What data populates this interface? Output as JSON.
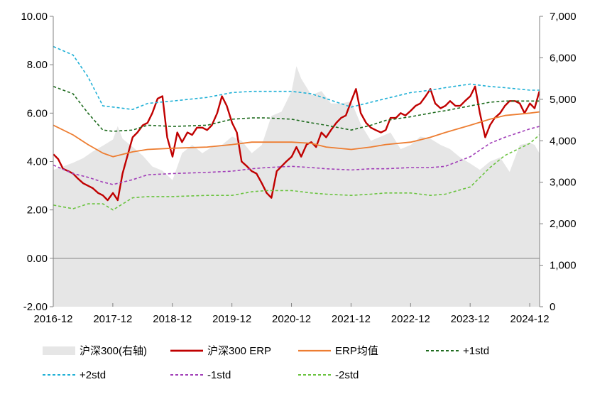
{
  "chart_data": {
    "type": "line",
    "title": "",
    "xlabel": "",
    "ylabel": "",
    "left_axis": {
      "ylim": [
        -2,
        10
      ],
      "ticks": [
        "-2.00",
        "0.00",
        "2.00",
        "4.00",
        "6.00",
        "8.00",
        "10.00"
      ]
    },
    "right_axis": {
      "ylim": [
        0,
        7000
      ],
      "ticks": [
        "0",
        "1,000",
        "2,000",
        "3,000",
        "4,000",
        "5,000",
        "6,000",
        "7,000"
      ]
    },
    "x_axis": {
      "range": [
        2016.917,
        2025.083
      ],
      "ticks": [
        "2016-12",
        "2017-12",
        "2018-12",
        "2019-12",
        "2020-12",
        "2021-12",
        "2022-12",
        "2023-12",
        "2024-12"
      ],
      "tick_positions": [
        2016.917,
        2017.917,
        2018.917,
        2019.917,
        2020.917,
        2021.917,
        2022.917,
        2023.917,
        2024.917
      ]
    },
    "grid": false,
    "legend_position": "bottom",
    "colors": {
      "index_area": "#e6e6e6",
      "erp": "#c00000",
      "mean": "#ed7d31",
      "plus1": "#1e6b1e",
      "plus2": "#1fb0d6",
      "minus1": "#a13eb8",
      "minus2": "#6ac33f"
    },
    "series": [
      {
        "name": "沪深300(右轴)",
        "kind": "area",
        "axis": "right",
        "x": [
          2016.92,
          2017.08,
          2017.25,
          2017.42,
          2017.58,
          2017.75,
          2017.92,
          2018.0,
          2018.08,
          2018.25,
          2018.42,
          2018.58,
          2018.75,
          2018.92,
          2019.08,
          2019.25,
          2019.42,
          2019.58,
          2019.75,
          2019.92,
          2020.08,
          2020.25,
          2020.42,
          2020.58,
          2020.75,
          2020.92,
          2021.0,
          2021.08,
          2021.25,
          2021.42,
          2021.58,
          2021.75,
          2021.92,
          2022.08,
          2022.25,
          2022.42,
          2022.58,
          2022.75,
          2022.92,
          2023.08,
          2023.25,
          2023.42,
          2023.58,
          2023.75,
          2023.92,
          2024.08,
          2024.25,
          2024.42,
          2024.58,
          2024.75,
          2024.92,
          2025.0,
          2025.08
        ],
        "values": [
          3300,
          3380,
          3470,
          3580,
          3740,
          3880,
          4030,
          4350,
          4050,
          3850,
          3640,
          3380,
          3280,
          3050,
          3700,
          3900,
          3700,
          3850,
          3900,
          4100,
          4000,
          3700,
          3900,
          4600,
          4700,
          5200,
          5800,
          5500,
          5100,
          5200,
          4900,
          4900,
          4950,
          4400,
          4000,
          4100,
          4200,
          3800,
          3900,
          4100,
          4050,
          3900,
          3800,
          3600,
          3450,
          3300,
          3500,
          3600,
          3250,
          3900,
          3950,
          3900,
          3700
        ]
      },
      {
        "name": "沪深300 ERP",
        "kind": "line",
        "axis": "left",
        "x": [
          2016.92,
          2017.0,
          2017.08,
          2017.17,
          2017.25,
          2017.33,
          2017.42,
          2017.5,
          2017.58,
          2017.67,
          2017.75,
          2017.83,
          2017.92,
          2018.0,
          2018.08,
          2018.17,
          2018.25,
          2018.33,
          2018.42,
          2018.5,
          2018.58,
          2018.67,
          2018.75,
          2018.83,
          2018.92,
          2019.0,
          2019.08,
          2019.17,
          2019.25,
          2019.33,
          2019.42,
          2019.5,
          2019.58,
          2019.67,
          2019.75,
          2019.83,
          2019.92,
          2020.0,
          2020.08,
          2020.17,
          2020.25,
          2020.33,
          2020.42,
          2020.5,
          2020.58,
          2020.67,
          2020.75,
          2020.83,
          2020.92,
          2021.0,
          2021.08,
          2021.17,
          2021.25,
          2021.33,
          2021.42,
          2021.5,
          2021.58,
          2021.67,
          2021.75,
          2021.83,
          2021.92,
          2022.0,
          2022.08,
          2022.17,
          2022.25,
          2022.33,
          2022.42,
          2022.5,
          2022.58,
          2022.67,
          2022.75,
          2022.83,
          2022.92,
          2023.0,
          2023.08,
          2023.17,
          2023.25,
          2023.33,
          2023.42,
          2023.5,
          2023.58,
          2023.67,
          2023.75,
          2023.83,
          2023.92,
          2024.0,
          2024.08,
          2024.17,
          2024.25,
          2024.33,
          2024.42,
          2024.5,
          2024.58,
          2024.67,
          2024.75,
          2024.83,
          2024.92,
          2025.0,
          2025.08
        ],
        "values": [
          4.3,
          4.1,
          3.7,
          3.6,
          3.5,
          3.3,
          3.1,
          3.0,
          2.9,
          2.7,
          2.6,
          2.4,
          2.7,
          2.4,
          3.5,
          4.3,
          5.0,
          5.2,
          5.5,
          5.6,
          6.0,
          6.6,
          6.7,
          5.0,
          4.2,
          5.2,
          4.8,
          5.2,
          5.1,
          5.4,
          5.4,
          5.3,
          5.5,
          6.0,
          6.7,
          6.3,
          5.6,
          5.2,
          4.0,
          3.8,
          3.6,
          3.5,
          3.1,
          2.7,
          2.5,
          3.6,
          3.8,
          4.0,
          4.2,
          4.6,
          4.2,
          4.7,
          4.8,
          4.6,
          5.2,
          5.0,
          5.3,
          5.6,
          5.8,
          5.9,
          6.5,
          7.0,
          6.0,
          5.6,
          5.4,
          5.3,
          5.2,
          5.3,
          5.8,
          5.8,
          6.0,
          5.9,
          6.1,
          6.3,
          6.4,
          6.7,
          7.0,
          6.4,
          6.2,
          6.3,
          6.5,
          6.3,
          6.3,
          6.5,
          6.7,
          7.1,
          6.0,
          5.0,
          5.5,
          5.8,
          6.0,
          6.3,
          6.5,
          6.5,
          6.4,
          6.0,
          6.4,
          6.2,
          6.9
        ]
      },
      {
        "name": "ERP均值",
        "kind": "line",
        "axis": "left",
        "x": [
          2016.92,
          2017.25,
          2017.5,
          2017.75,
          2017.92,
          2018.25,
          2018.5,
          2018.92,
          2019.5,
          2019.92,
          2020.25,
          2020.5,
          2020.92,
          2021.25,
          2021.5,
          2021.92,
          2022.25,
          2022.5,
          2022.92,
          2023.25,
          2023.5,
          2023.92,
          2024.25,
          2024.5,
          2024.92,
          2025.08
        ],
        "values": [
          5.5,
          5.1,
          4.7,
          4.35,
          4.2,
          4.4,
          4.5,
          4.55,
          4.6,
          4.7,
          4.8,
          4.8,
          4.8,
          4.75,
          4.6,
          4.5,
          4.6,
          4.7,
          4.8,
          5.0,
          5.2,
          5.5,
          5.75,
          5.9,
          6.0,
          6.05
        ]
      },
      {
        "name": "+1std",
        "kind": "dashed",
        "axis": "left",
        "x": [
          2016.92,
          2017.25,
          2017.5,
          2017.75,
          2017.92,
          2018.25,
          2018.5,
          2018.92,
          2019.5,
          2019.92,
          2020.25,
          2020.5,
          2020.92,
          2021.25,
          2021.5,
          2021.92,
          2022.25,
          2022.5,
          2022.92,
          2023.25,
          2023.5,
          2023.92,
          2024.25,
          2024.5,
          2024.92,
          2025.08
        ],
        "values": [
          7.1,
          6.8,
          6.0,
          5.3,
          5.25,
          5.3,
          5.5,
          5.45,
          5.5,
          5.75,
          5.8,
          5.8,
          5.75,
          5.6,
          5.5,
          5.3,
          5.5,
          5.7,
          5.85,
          6.0,
          6.1,
          6.3,
          6.45,
          6.5,
          6.5,
          6.5
        ]
      },
      {
        "name": "+2std",
        "kind": "dashed",
        "axis": "left",
        "x": [
          2016.92,
          2017.25,
          2017.5,
          2017.75,
          2017.92,
          2018.25,
          2018.5,
          2018.92,
          2019.5,
          2019.92,
          2020.25,
          2020.5,
          2020.92,
          2021.25,
          2021.5,
          2021.92,
          2022.25,
          2022.5,
          2022.92,
          2023.25,
          2023.5,
          2023.92,
          2024.25,
          2024.5,
          2024.92,
          2025.08
        ],
        "values": [
          8.75,
          8.4,
          7.5,
          6.3,
          6.25,
          6.15,
          6.4,
          6.5,
          6.65,
          6.85,
          6.9,
          6.9,
          6.9,
          6.8,
          6.6,
          6.25,
          6.45,
          6.6,
          6.85,
          6.95,
          7.05,
          7.2,
          7.1,
          7.05,
          6.95,
          6.95
        ]
      },
      {
        "name": "-1std",
        "kind": "dashed",
        "axis": "left",
        "x": [
          2016.92,
          2017.25,
          2017.5,
          2017.75,
          2017.92,
          2018.25,
          2018.5,
          2018.92,
          2019.5,
          2019.92,
          2020.25,
          2020.5,
          2020.92,
          2021.25,
          2021.5,
          2021.92,
          2022.25,
          2022.5,
          2022.92,
          2023.25,
          2023.5,
          2023.92,
          2024.25,
          2024.5,
          2024.92,
          2025.08
        ],
        "values": [
          3.85,
          3.5,
          3.35,
          3.15,
          3.05,
          3.25,
          3.45,
          3.5,
          3.55,
          3.6,
          3.7,
          3.75,
          3.8,
          3.75,
          3.7,
          3.65,
          3.7,
          3.7,
          3.75,
          3.75,
          3.8,
          4.2,
          4.75,
          5.0,
          5.35,
          5.45
        ]
      },
      {
        "name": "-2std",
        "kind": "dashed",
        "axis": "left",
        "x": [
          2016.92,
          2017.25,
          2017.5,
          2017.75,
          2017.92,
          2018.25,
          2018.5,
          2018.92,
          2019.5,
          2019.92,
          2020.25,
          2020.5,
          2020.92,
          2021.25,
          2021.5,
          2021.92,
          2022.25,
          2022.5,
          2022.92,
          2023.25,
          2023.5,
          2023.92,
          2024.25,
          2024.5,
          2024.92,
          2025.08
        ],
        "values": [
          2.2,
          2.05,
          2.25,
          2.25,
          2.0,
          2.5,
          2.55,
          2.55,
          2.6,
          2.6,
          2.75,
          2.8,
          2.8,
          2.7,
          2.65,
          2.6,
          2.65,
          2.7,
          2.7,
          2.6,
          2.65,
          2.95,
          3.75,
          4.25,
          4.75,
          5.1
        ]
      }
    ],
    "legend": [
      {
        "label": "沪深300(右轴)",
        "series": 0
      },
      {
        "label": "沪深300 ERP",
        "series": 1
      },
      {
        "label": "ERP均值",
        "series": 2
      },
      {
        "label": "+1std",
        "series": 3
      },
      {
        "label": "+2std",
        "series": 4
      },
      {
        "label": "-1std",
        "series": 5
      },
      {
        "label": "-2std",
        "series": 6
      }
    ]
  }
}
